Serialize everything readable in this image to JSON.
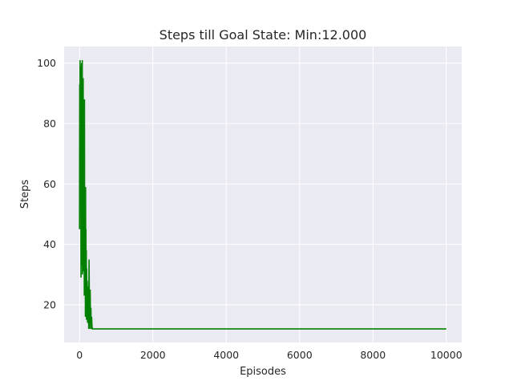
{
  "chart_data": {
    "type": "line",
    "title": "Steps till Goal State: Min:12.000",
    "xlabel": "Episodes",
    "ylabel": "Steps",
    "xlim": [
      -420,
      10420
    ],
    "ylim": [
      7.5,
      105.5
    ],
    "xticks": [
      0,
      2000,
      4000,
      6000,
      8000,
      10000
    ],
    "yticks": [
      20,
      40,
      60,
      80,
      100
    ],
    "xtick_labels": [
      "0",
      "2000",
      "4000",
      "6000",
      "8000",
      "10000"
    ],
    "ytick_labels": [
      "20",
      "40",
      "60",
      "80",
      "100"
    ],
    "grid": true,
    "style": "seaborn-darkgrid",
    "colors": {
      "line": "#008000",
      "axes_bg": "#eaeaf2",
      "grid": "#ffffff",
      "figure_bg": "#ffffff",
      "text": "#262626"
    },
    "series": [
      {
        "x": [
          0,
          5,
          10,
          15,
          20,
          25,
          30,
          35,
          40,
          45,
          50,
          55,
          60,
          65,
          70,
          75,
          80,
          85,
          90,
          95,
          100,
          105,
          110,
          115,
          120,
          125,
          130,
          135,
          140,
          145,
          150,
          155,
          160,
          165,
          170,
          175,
          180,
          185,
          190,
          195,
          200,
          210,
          220,
          230,
          240,
          250,
          260,
          270,
          280,
          290,
          300,
          310,
          320,
          330,
          340,
          350,
          400,
          500,
          10000
        ],
        "y": [
          45,
          93,
          70,
          101,
          88,
          55,
          99,
          62,
          29,
          96,
          40,
          100,
          33,
          72,
          47,
          101,
          30,
          85,
          58,
          36,
          95,
          52,
          31,
          77,
          40,
          66,
          23,
          88,
          35,
          55,
          27,
          50,
          16,
          59,
          24,
          45,
          20,
          38,
          15,
          32,
          22,
          28,
          14,
          20,
          26,
          12,
          35,
          18,
          12,
          25,
          14,
          19,
          12,
          16,
          13,
          12,
          12,
          12,
          12
        ]
      }
    ]
  }
}
